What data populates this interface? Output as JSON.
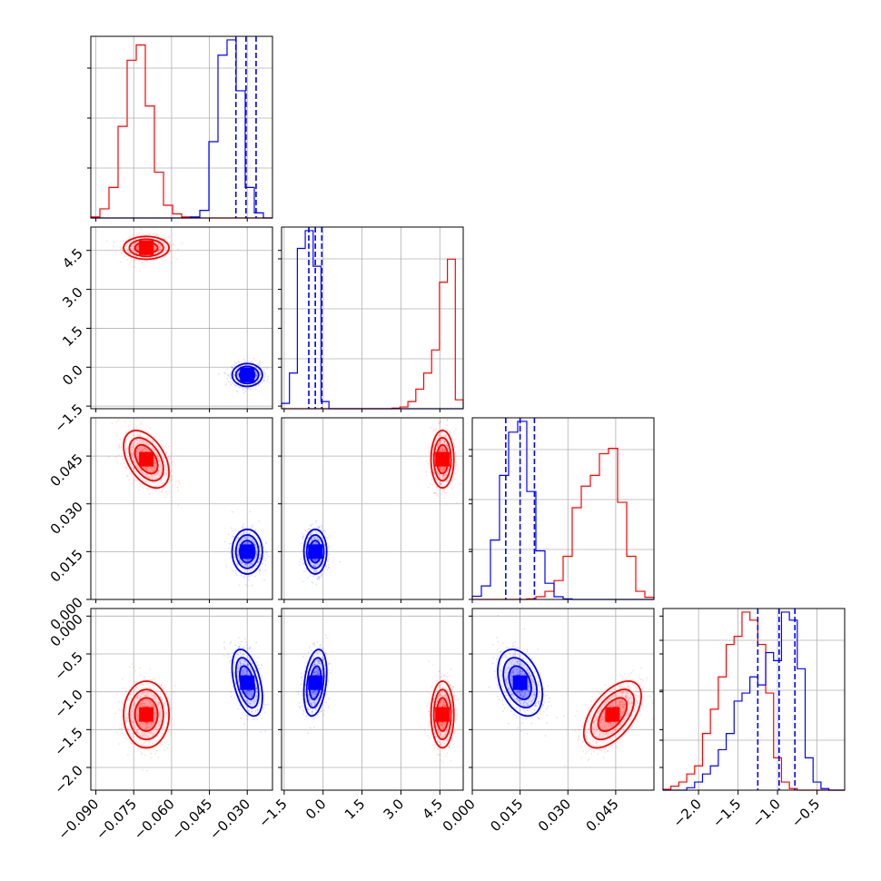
{
  "chart_data": {
    "type": "corner",
    "title": "",
    "parameter_labels": [
      "",
      "",
      "",
      ""
    ],
    "series_colors": [
      "#ff0000",
      "#0000ff"
    ],
    "axes": [
      {
        "range": [
          -0.092,
          -0.02
        ],
        "ticks": [
          -0.09,
          -0.075,
          -0.06,
          -0.045,
          -0.03
        ],
        "tick_labels": [
          "−0.090",
          "−0.075",
          "−0.060",
          "−0.045",
          "−0.030"
        ]
      },
      {
        "range": [
          -1.6,
          5.4
        ],
        "ticks": [
          -1.5,
          0.0,
          1.5,
          3.0,
          4.5
        ],
        "tick_labels": [
          "−1.5",
          "0.0",
          "1.5",
          "3.0",
          "4.5"
        ]
      },
      {
        "range": [
          0.0,
          0.057
        ],
        "ticks": [
          0.0,
          0.015,
          0.03,
          0.045
        ],
        "tick_labels": [
          "0.000",
          "0.015",
          "0.030",
          "0.045"
        ]
      },
      {
        "range": [
          -2.3,
          0.1
        ],
        "ticks": [
          -2.0,
          -1.5,
          -1.0,
          -0.5,
          0.0
        ],
        "tick_labels": [
          "−2.0",
          "−1.5",
          "−1.0",
          "−0.5",
          "0.000"
        ]
      }
    ],
    "diag_axes": [
      {
        "range": [
          -0.092,
          -0.02
        ]
      },
      {
        "range": [
          -1.6,
          5.4
        ]
      },
      {
        "range": [
          0.0,
          0.057
        ]
      },
      {
        "range": [
          -2.45,
          -0.15
        ],
        "ticks": [
          -2.0,
          -1.5,
          -1.0,
          -0.5
        ],
        "tick_labels": [
          "−2.0",
          "−1.5",
          "−1.0",
          "−0.5"
        ]
      }
    ],
    "series": [
      {
        "color": "#ff0000",
        "mean": [
          -0.07,
          4.6,
          0.044,
          -1.3
        ],
        "sd": [
          0.0045,
          0.22,
          0.0045,
          0.22
        ],
        "corr": {
          "0-2": -0.45,
          "2-3": 0.55,
          "1-2": 0.0,
          "0-1": 0.0,
          "0-3": 0.0,
          "1-3": 0.0
        }
      },
      {
        "color": "#0000ff",
        "mean": [
          -0.03,
          -0.3,
          0.015,
          -0.88
        ],
        "sd": [
          0.003,
          0.22,
          0.0035,
          0.22
        ],
        "corr": {
          "0-3": -0.45,
          "2-3": -0.35,
          "1-3": 0.3,
          "0-1": 0.0,
          "0-2": 0.0,
          "1-2": 0.0
        }
      }
    ],
    "quantile_lines": [
      [
        -0.0345,
        -0.0305,
        -0.0265
      ],
      [
        -0.55,
        -0.3,
        -0.05
      ],
      [
        0.0105,
        0.015,
        0.0195
      ],
      [
        -1.25,
        -0.98,
        -0.78
      ]
    ],
    "diag_hist": [
      {
        "edges": [
          -0.092,
          -0.02
        ],
        "red": [
          0.2,
          1.8,
          6,
          18,
          31,
          34,
          22,
          9,
          2.5,
          0.8,
          0.2,
          0,
          0,
          0,
          0,
          0,
          0,
          0,
          0,
          0
        ],
        "blue": [
          0,
          0,
          0,
          0,
          0,
          0,
          0,
          0,
          0,
          0,
          0,
          0.2,
          1.5,
          15,
          32,
          35,
          25,
          6,
          1,
          0
        ]
      },
      {
        "edges": [
          -1.6,
          5.4
        ],
        "red": [
          0,
          0,
          0,
          0,
          0,
          0,
          0,
          0,
          0,
          0,
          0,
          0,
          0,
          0,
          0.3,
          1,
          4,
          11,
          20,
          33,
          71,
          84,
          5
        ],
        "blue": [
          3,
          20,
          90,
          100,
          80,
          4,
          0,
          0,
          0,
          0,
          0,
          0,
          0,
          0,
          0,
          0,
          0,
          0,
          0,
          0,
          0,
          0,
          0
        ]
      },
      {
        "edges": [
          0.0,
          0.057
        ],
        "red": [
          0,
          0,
          0,
          0,
          0,
          0,
          0.1,
          0.5,
          1.5,
          3.5,
          8,
          17,
          21,
          23,
          27,
          28,
          18,
          8,
          1.5,
          0.4
        ],
        "blue": [
          0.6,
          2.5,
          11,
          23,
          31,
          33,
          20,
          9,
          3,
          0.5,
          0.1,
          0,
          0,
          0,
          0,
          0,
          0,
          0,
          0,
          0
        ]
      },
      {
        "edges": [
          -2.45,
          -0.15
        ],
        "red": [
          0.1,
          0.5,
          1,
          2,
          3,
          7,
          10,
          14,
          18,
          19,
          22,
          21,
          18,
          12,
          4,
          1,
          0.2,
          0,
          0,
          0,
          0,
          0,
          0
        ],
        "blue": [
          0,
          0,
          0,
          0.3,
          1,
          2,
          3,
          5,
          7,
          11,
          12,
          14,
          13,
          17,
          16,
          22,
          21,
          15,
          4,
          1,
          0.2,
          0,
          0
        ]
      }
    ]
  }
}
